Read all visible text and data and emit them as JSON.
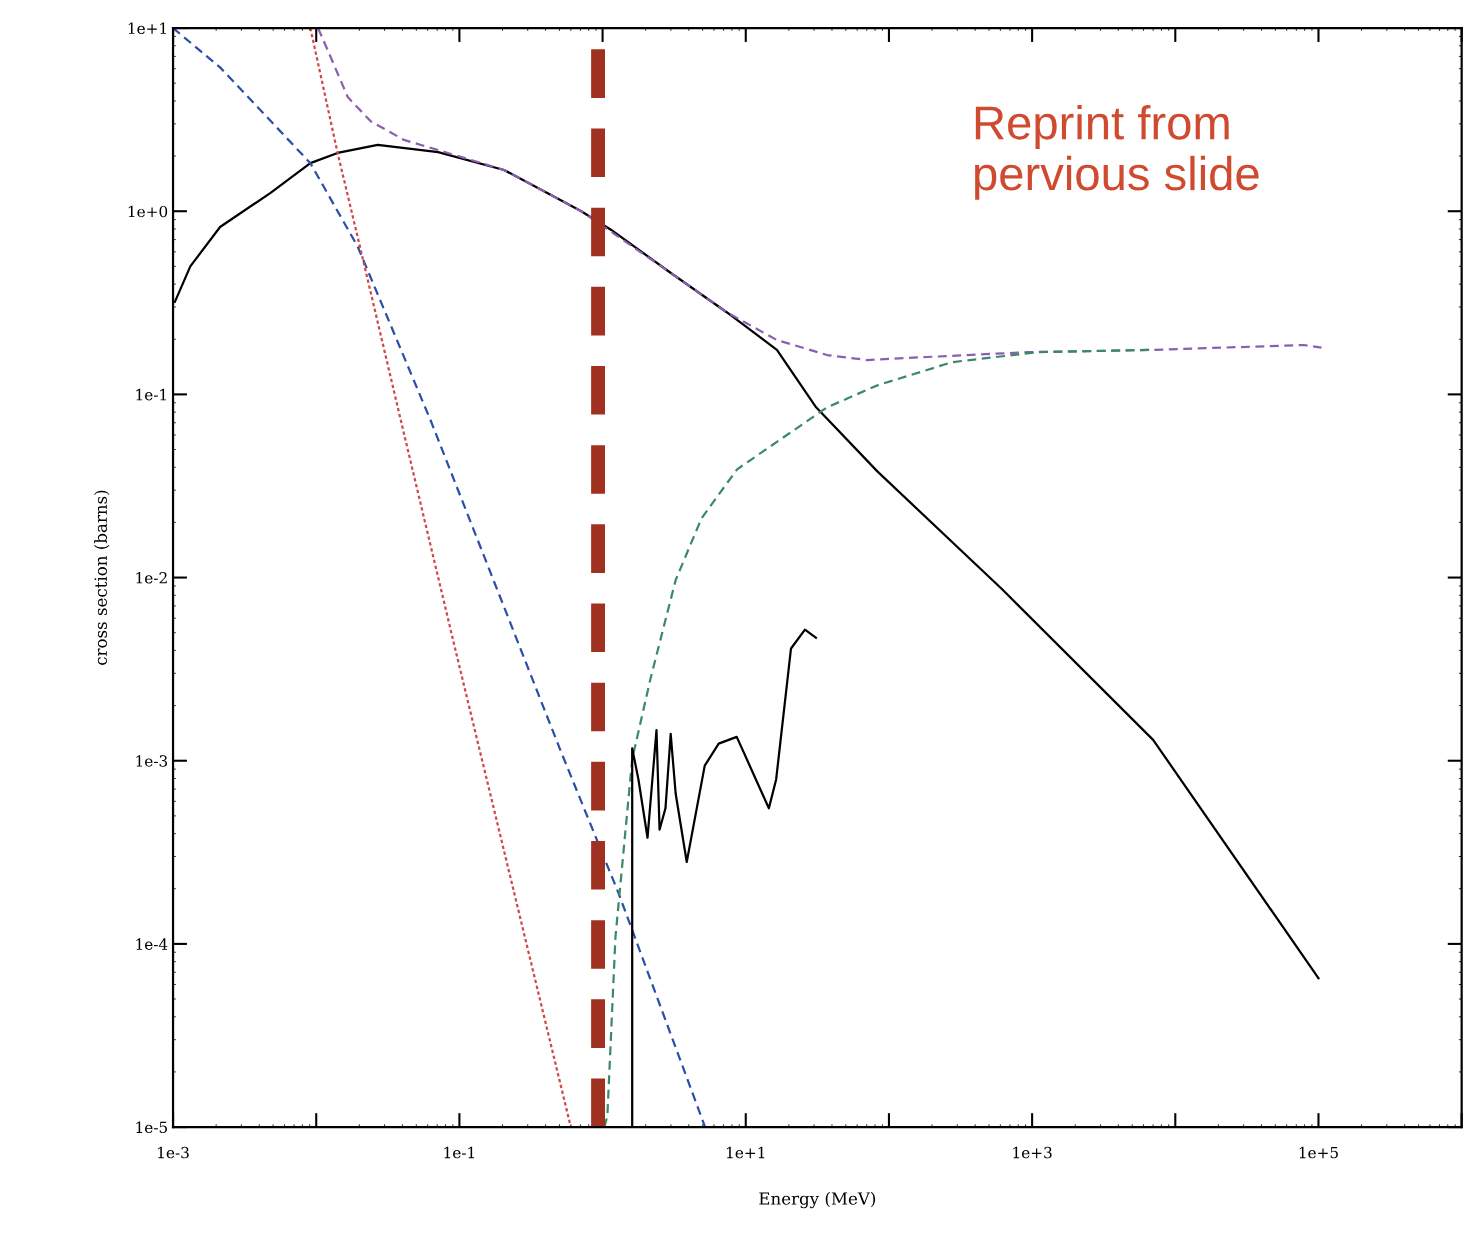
{
  "chart_data": {
    "type": "line",
    "xlabel": "Energy (MeV)",
    "ylabel": "cross section (barns)",
    "log": "xy",
    "grid": false,
    "legend": false,
    "marker": "none",
    "xlim": [
      0.001,
      1000000
    ],
    "ylim": [
      1e-05,
      10
    ],
    "xticks": [
      {
        "value": 0.001,
        "label": "1e-3"
      },
      {
        "value": 0.01,
        "label": null
      },
      {
        "value": 0.1,
        "label": "1e-1"
      },
      {
        "value": 1,
        "label": null
      },
      {
        "value": 10,
        "label": "1e+1"
      },
      {
        "value": 100,
        "label": null
      },
      {
        "value": 1000,
        "label": "1e+3"
      },
      {
        "value": 10000,
        "label": null
      },
      {
        "value": 100000,
        "label": "1e+5"
      },
      {
        "value": 1000000,
        "label": null
      }
    ],
    "yticks": [
      {
        "value": 1e-05,
        "label": "1e-5"
      },
      {
        "value": 0.0001,
        "label": "1e-4"
      },
      {
        "value": 0.001,
        "label": "1e-3"
      },
      {
        "value": 0.01,
        "label": "1e-2"
      },
      {
        "value": 0.1,
        "label": "1e-1"
      },
      {
        "value": 1,
        "label": "1e+0"
      },
      {
        "value": 10,
        "label": "1e+1"
      }
    ],
    "ref_lines": [
      {
        "axis": "x",
        "value": 0.93,
        "color": "#a0301f",
        "line_style": "dashed"
      }
    ],
    "annotations": [
      "Reprint from\npervious slide"
    ],
    "series": [
      {
        "color": "#000000",
        "line_style": "solid",
        "x": [
          0.00103,
          0.00132,
          0.00213,
          0.0048,
          0.0091,
          0.0141,
          0.0269,
          0.071,
          0.205,
          0.46,
          0.71,
          1.15,
          3.0,
          7.4,
          16.5,
          31,
          83,
          620,
          7000,
          100000
        ],
        "values": [
          0.32,
          0.5,
          0.82,
          1.26,
          1.83,
          2.08,
          2.3,
          2.1,
          1.68,
          1.2,
          1.0,
          0.79,
          0.46,
          0.28,
          0.175,
          0.085,
          0.038,
          0.0086,
          0.0013,
          6.5e-05
        ]
      },
      {
        "color": "#8a5fb0",
        "line_style": "dashed",
        "x": [
          0.0103,
          0.012,
          0.0166,
          0.024,
          0.041,
          0.083,
          0.205,
          0.46,
          0.71,
          3.0,
          7.4,
          16.5,
          37,
          70,
          185,
          930,
          7000,
          79000,
          105000
        ],
        "values": [
          10,
          7.6,
          4.2,
          3.1,
          2.45,
          2.08,
          1.68,
          1.2,
          1.0,
          0.46,
          0.28,
          0.198,
          0.164,
          0.154,
          0.16,
          0.17,
          0.175,
          0.186,
          0.18
        ]
      },
      {
        "color": "#2a4fa8",
        "line_style": "dashed",
        "x": [
          0.001,
          0.00213,
          0.0091,
          0.0195,
          0.063,
          0.51,
          1.29,
          5.2
        ],
        "values": [
          10,
          6.1,
          1.83,
          0.64,
          0.072,
          0.00113,
          0.00019,
          1e-05
        ]
      },
      {
        "color": "#d04848",
        "line_style": "dotted",
        "x": [
          0.0091,
          0.0141,
          0.0195,
          0.039,
          0.094,
          0.6
        ],
        "values": [
          10,
          2.08,
          0.72,
          0.072,
          0.004,
          1e-05
        ]
      },
      {
        "color": "#3a8a6a",
        "line_style": "dashed",
        "x": [
          1.03,
          1.08,
          1.23,
          1.61,
          2.16,
          3.24,
          4.9,
          8.7,
          37,
          83,
          277,
          1090,
          7000
        ],
        "values": [
          1e-05,
          1.15e-05,
          0.000109,
          0.00102,
          0.0028,
          0.0097,
          0.021,
          0.039,
          0.085,
          0.112,
          0.15,
          0.17,
          0.175
        ]
      },
      {
        "color": "#000000",
        "line_style": "solid",
        "x": [
          1.61,
          1.61,
          1.78,
          2.06,
          2.38,
          2.5,
          2.75,
          2.99,
          3.24,
          3.87,
          5.17,
          6.47,
          8.65,
          14.5,
          16.3,
          20.7,
          25.9,
          30.9
        ],
        "values": [
          1e-05,
          0.00117,
          0.00079,
          0.00038,
          0.00147,
          0.00042,
          0.00055,
          0.0014,
          0.00066,
          0.00028,
          0.00094,
          0.00124,
          0.00135,
          0.00055,
          0.00079,
          0.0041,
          0.0052,
          0.0047
        ]
      }
    ]
  }
}
